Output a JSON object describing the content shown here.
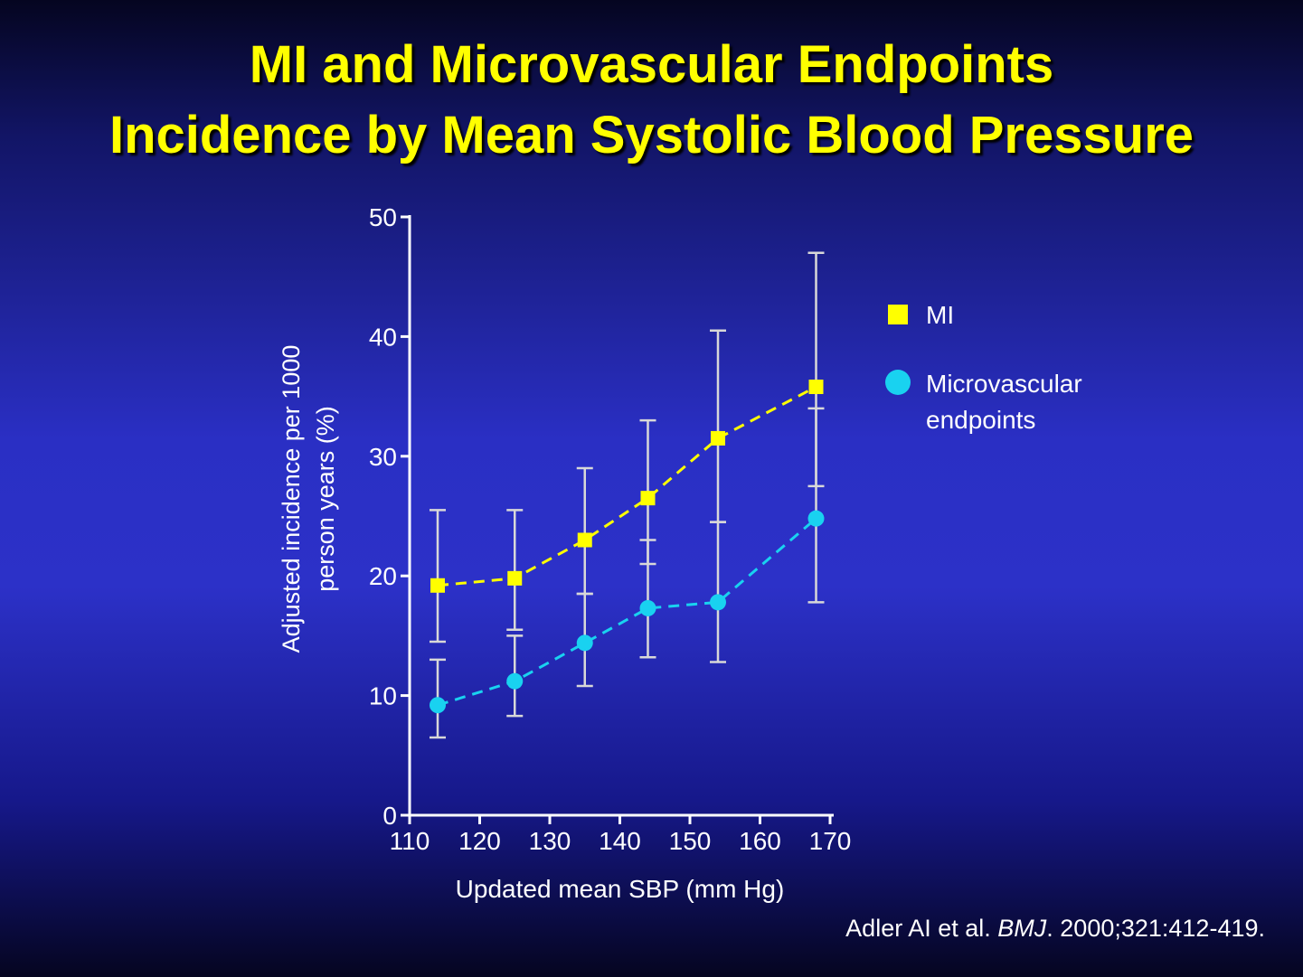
{
  "slide": {
    "title_line1": "MI and Microvascular Endpoints",
    "title_line2": "Incidence by Mean Systolic Blood Pressure",
    "citation_authors": "Adler AI et al.",
    "citation_journal": "BMJ",
    "citation_details": ". 2000;321:412-419."
  },
  "chart_data": {
    "type": "line",
    "xlabel": "Updated mean SBP (mm Hg)",
    "ylabel": [
      "Adjusted incidence per 1000",
      "person years (%)"
    ],
    "xlim": [
      110,
      170
    ],
    "ylim": [
      0,
      50
    ],
    "xticks": [
      110,
      120,
      130,
      140,
      150,
      160,
      170
    ],
    "yticks": [
      0,
      10,
      20,
      30,
      40,
      50
    ],
    "grid": false,
    "legend_position": "right",
    "series": [
      {
        "name": "MI",
        "marker": "square",
        "color": "#ffff00",
        "x": [
          114,
          125,
          135,
          144,
          154,
          168
        ],
        "y": [
          19.2,
          19.8,
          23.0,
          26.5,
          31.5,
          35.8
        ],
        "err_low": [
          14.5,
          15.5,
          18.5,
          21.0,
          24.5,
          27.5
        ],
        "err_high": [
          25.5,
          25.5,
          29.0,
          33.0,
          40.5,
          47.0
        ]
      },
      {
        "name": "Microvascular endpoints",
        "marker": "circle",
        "color": "#19d2f0",
        "x": [
          114,
          125,
          135,
          144,
          154,
          168
        ],
        "y": [
          9.2,
          11.2,
          14.4,
          17.3,
          17.8,
          24.8
        ],
        "err_low": [
          6.5,
          8.3,
          10.8,
          13.2,
          12.8,
          17.8
        ],
        "err_high": [
          13.0,
          15.0,
          18.5,
          23.0,
          24.5,
          34.0
        ]
      }
    ],
    "legend_labels": [
      [
        "MI"
      ],
      [
        "Microvascular",
        "endpoints"
      ]
    ]
  }
}
